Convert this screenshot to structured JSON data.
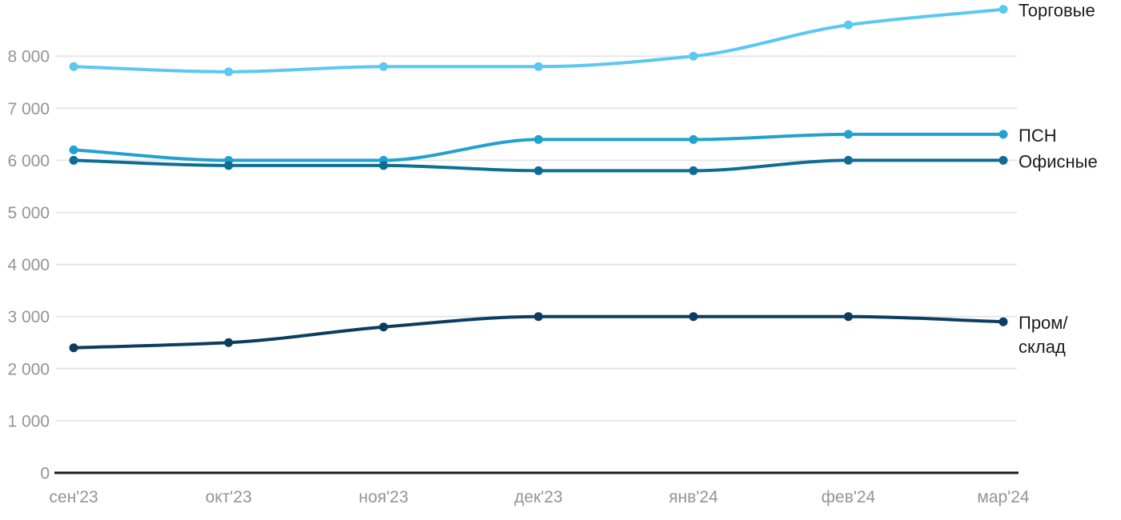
{
  "chart_data": {
    "type": "line",
    "title": "",
    "xlabel": "",
    "ylabel": "",
    "categories": [
      "сен'23",
      "окт'23",
      "ноя'23",
      "дек'23",
      "янв'24",
      "фев'24",
      "мар'24"
    ],
    "series": [
      {
        "name": "Торговые",
        "legend_lines": [
          "Торговые"
        ],
        "color": "#5AC8F2",
        "values": [
          7800,
          7700,
          7800,
          7800,
          8000,
          8600,
          8900
        ]
      },
      {
        "name": "ПСН",
        "legend_lines": [
          "ПСН"
        ],
        "color": "#21A1CE",
        "values": [
          6200,
          6000,
          6000,
          6400,
          6400,
          6500,
          6500
        ]
      },
      {
        "name": "Офисные",
        "legend_lines": [
          "Офисные"
        ],
        "color": "#0E6D94",
        "values": [
          6000,
          5900,
          5900,
          5800,
          5800,
          6000,
          6000
        ]
      },
      {
        "name": "Пром/склад",
        "legend_lines": [
          "Пром/",
          "склад"
        ],
        "color": "#0D3C5E",
        "values": [
          2400,
          2500,
          2800,
          3000,
          3000,
          3000,
          2900
        ]
      }
    ],
    "y_ticks": [
      {
        "value": 0,
        "label": "0"
      },
      {
        "value": 1000,
        "label": "1 000"
      },
      {
        "value": 2000,
        "label": "2 000"
      },
      {
        "value": 3000,
        "label": "3 000"
      },
      {
        "value": 4000,
        "label": "4 000"
      },
      {
        "value": 5000,
        "label": "5 000"
      },
      {
        "value": 6000,
        "label": "6 000"
      },
      {
        "value": 7000,
        "label": "7 000"
      },
      {
        "value": 8000,
        "label": "8 000"
      }
    ],
    "ylim": [
      0,
      9080
    ],
    "grid": "horizontal",
    "legend_position": "right-of-line-ends"
  },
  "colors": {
    "background": "#FFFFFF",
    "grid": "#E7E7E7",
    "axis": "#1C1C1C",
    "tick_text": "#949494",
    "legend_text": "#1B1B1B"
  }
}
